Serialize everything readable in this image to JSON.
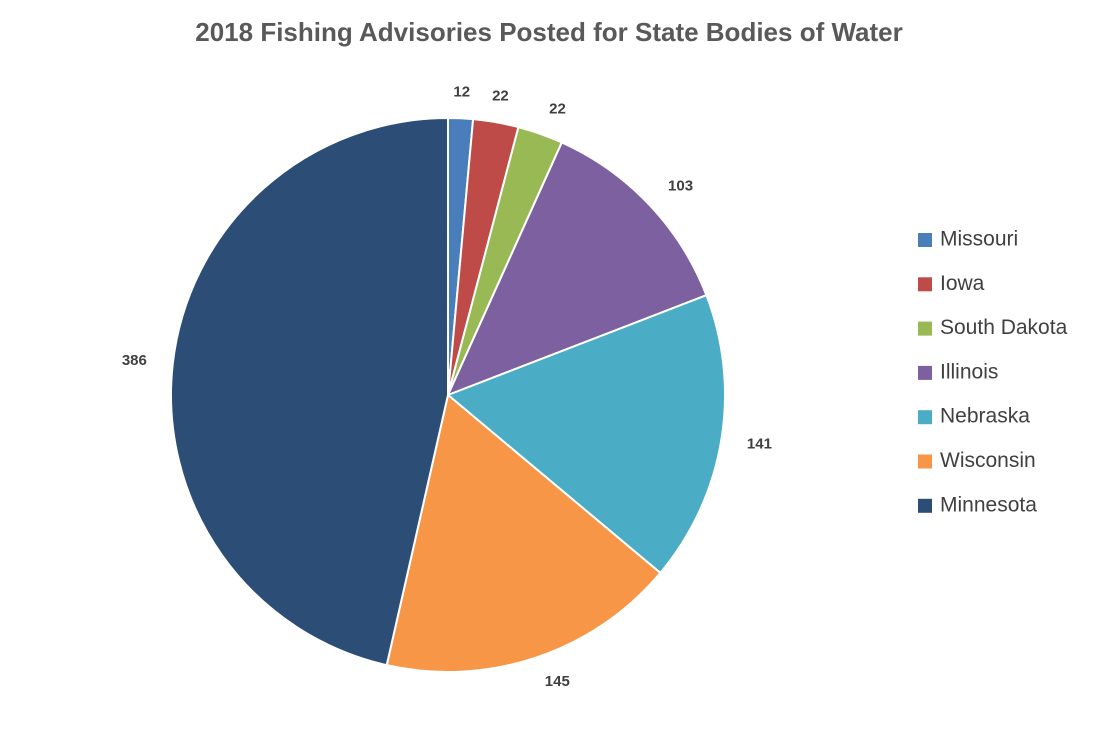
{
  "chart_data": {
    "type": "pie",
    "title": "2018 Fishing Advisories Posted for State Bodies of Water",
    "categories": [
      "Missouri",
      "Iowa",
      "South Dakota",
      "Illinois",
      "Nebraska",
      "Wisconsin",
      "Minnesota"
    ],
    "values": [
      12,
      22,
      22,
      103,
      141,
      145,
      386
    ],
    "colors": [
      "#4a7ebb",
      "#be4b48",
      "#98b954",
      "#7d60a0",
      "#4bacc6",
      "#f79646",
      "#2c4d75"
    ],
    "legend": "right"
  }
}
